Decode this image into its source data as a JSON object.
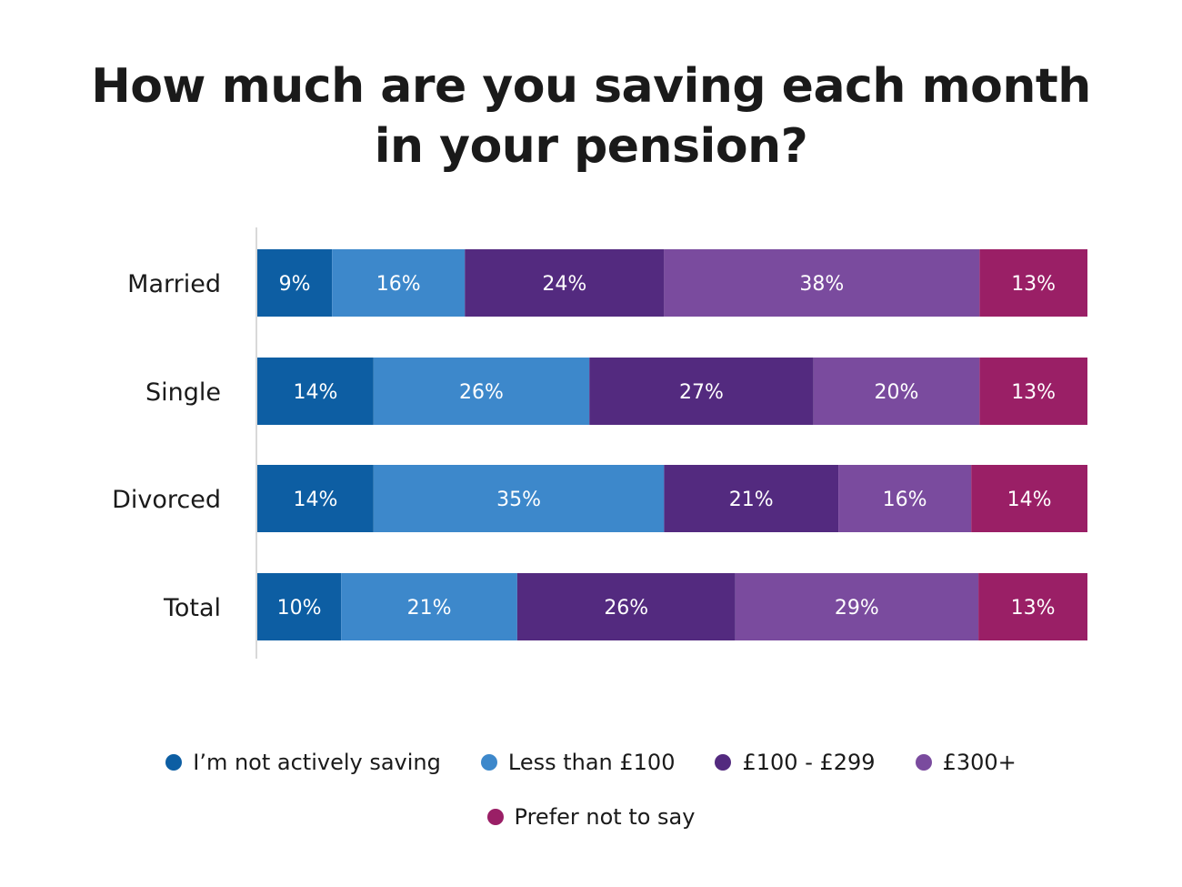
{
  "chart_data": {
    "type": "bar",
    "orientation": "horizontal",
    "stacked": true,
    "title": "How much are you saving each month in your pension?",
    "title_lines": [
      "How much are you saving each month",
      "in your pension?"
    ],
    "categories": [
      "Married",
      "Single",
      "Divorced",
      "Total"
    ],
    "series": [
      {
        "name": "I’m not actively saving",
        "color": "#0d5ea3",
        "values": [
          9,
          14,
          14,
          10
        ]
      },
      {
        "name": "Less than £100",
        "color": "#3d88cb",
        "values": [
          16,
          26,
          35,
          21
        ]
      },
      {
        "name": "£100 - £299",
        "color": "#532a7f",
        "values": [
          24,
          27,
          21,
          26
        ]
      },
      {
        "name": "£300+",
        "color": "#7a4b9e",
        "values": [
          38,
          20,
          16,
          29
        ]
      },
      {
        "name": "Prefer not to say",
        "color": "#9a1f66",
        "values": [
          13,
          13,
          14,
          13
        ]
      }
    ],
    "data_labels": [
      [
        "9%",
        "16%",
        "24%",
        "38%",
        "13%"
      ],
      [
        "14%",
        "26%",
        "27%",
        "20%",
        "13%"
      ],
      [
        "14%",
        "35%",
        "21%",
        "16%",
        "14%"
      ],
      [
        "10%",
        "21%",
        "26%",
        "29%",
        "13%"
      ]
    ],
    "legend_position": "bottom",
    "grid": false
  }
}
